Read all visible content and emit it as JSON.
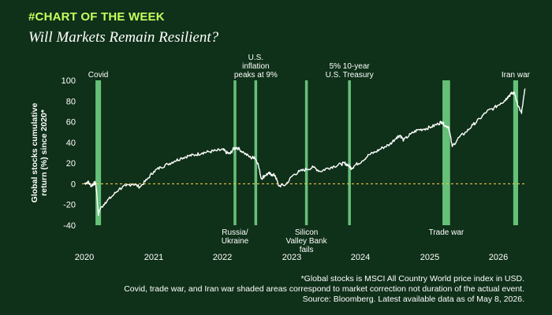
{
  "header": {
    "kicker": "#CHART OF THE WEEK",
    "title": "Will Markets Remain Resilient?"
  },
  "colors": {
    "background": "#0f3019",
    "line": "#ffffff",
    "shade": "#74d98a",
    "zero_line": "#e8c547",
    "kicker": "#c6ff5e"
  },
  "chart_data": {
    "type": "line",
    "title": "Will Markets Remain Resilient?",
    "ylabel": "Global stocks cumulative return (%) since 2020*",
    "xlabel": "",
    "ylim": [
      -40,
      100
    ],
    "yticks": [
      100,
      80,
      60,
      40,
      20,
      0,
      -20,
      -40
    ],
    "xticks": [
      "2020",
      "2021",
      "2022",
      "2023",
      "2024",
      "2025",
      "2026"
    ],
    "xlim": [
      2020.0,
      2026.4
    ],
    "zero_line": true,
    "grid": false,
    "series": [
      {
        "x": [
          2020.0,
          2020.05,
          2020.1,
          2020.13,
          2020.16,
          2020.18,
          2020.2,
          2020.22,
          2020.3,
          2020.4,
          2020.5,
          2020.6,
          2020.7,
          2020.8,
          2020.9,
          2021.0,
          2021.1,
          2021.2,
          2021.3,
          2021.4,
          2021.5,
          2021.6,
          2021.7,
          2021.8,
          2021.9,
          2022.0,
          2022.05,
          2022.1,
          2022.15,
          2022.2,
          2022.3,
          2022.4,
          2022.45,
          2022.5,
          2022.55,
          2022.6,
          2022.65,
          2022.7,
          2022.75,
          2022.8,
          2022.9,
          2023.0,
          2023.1,
          2023.2,
          2023.3,
          2023.4,
          2023.5,
          2023.6,
          2023.7,
          2023.75,
          2023.8,
          2023.85,
          2023.9,
          2024.0,
          2024.1,
          2024.2,
          2024.3,
          2024.4,
          2024.5,
          2024.55,
          2024.6,
          2024.7,
          2024.8,
          2024.9,
          2025.0,
          2025.1,
          2025.15,
          2025.2,
          2025.25,
          2025.3,
          2025.4,
          2025.5,
          2025.6,
          2025.7,
          2025.8,
          2025.9,
          2026.0,
          2026.05,
          2026.1,
          2026.15,
          2026.2,
          2026.25,
          2026.3,
          2026.35
        ],
        "y": [
          0,
          2,
          -2,
          0,
          1,
          -10,
          -30,
          -25,
          -18,
          -12,
          -5,
          -2,
          0,
          -3,
          4,
          12,
          16,
          19,
          22,
          25,
          27,
          28,
          30,
          31,
          32,
          33,
          30,
          29,
          34,
          35,
          30,
          25,
          26,
          20,
          5,
          8,
          10,
          9,
          8,
          -2,
          -1,
          8,
          12,
          14,
          16,
          12,
          15,
          17,
          19,
          20,
          18,
          15,
          18,
          22,
          28,
          31,
          35,
          38,
          45,
          47,
          42,
          48,
          52,
          53,
          55,
          58,
          60,
          56,
          55,
          36,
          45,
          50,
          57,
          63,
          70,
          73,
          78,
          80,
          84,
          87,
          88,
          75,
          68,
          92
        ]
      }
    ],
    "shaded_events": [
      {
        "start": 2020.16,
        "end": 2020.24,
        "label": "Covid",
        "label_pos": "top"
      },
      {
        "start": 2022.15,
        "end": 2022.19,
        "label": "Russia/ Ukraine",
        "label_pos": "bottom"
      },
      {
        "start": 2022.45,
        "end": 2022.49,
        "label": "U.S. inflation peaks at 9%",
        "label_pos": "top"
      },
      {
        "start": 2023.18,
        "end": 2023.22,
        "label": "Silicon Valley Bank fails",
        "label_pos": "bottom"
      },
      {
        "start": 2023.8,
        "end": 2023.84,
        "label": "5% 10-year U.S. Treasury",
        "label_pos": "top"
      },
      {
        "start": 2025.16,
        "end": 2025.27,
        "label": "Trade war",
        "label_pos": "bottom"
      },
      {
        "start": 2026.18,
        "end": 2026.25,
        "label": "Iran war",
        "label_pos": "top"
      }
    ]
  },
  "footnote": {
    "line1": "*Global stocks is MSCI All Country World price index in USD.",
    "line2": "Covid, trade war, and Iran war shaded areas correspond to market correction not duration of the actual event.",
    "line3": "Source: Bloomberg. Latest available data as of May 8, 2026."
  }
}
